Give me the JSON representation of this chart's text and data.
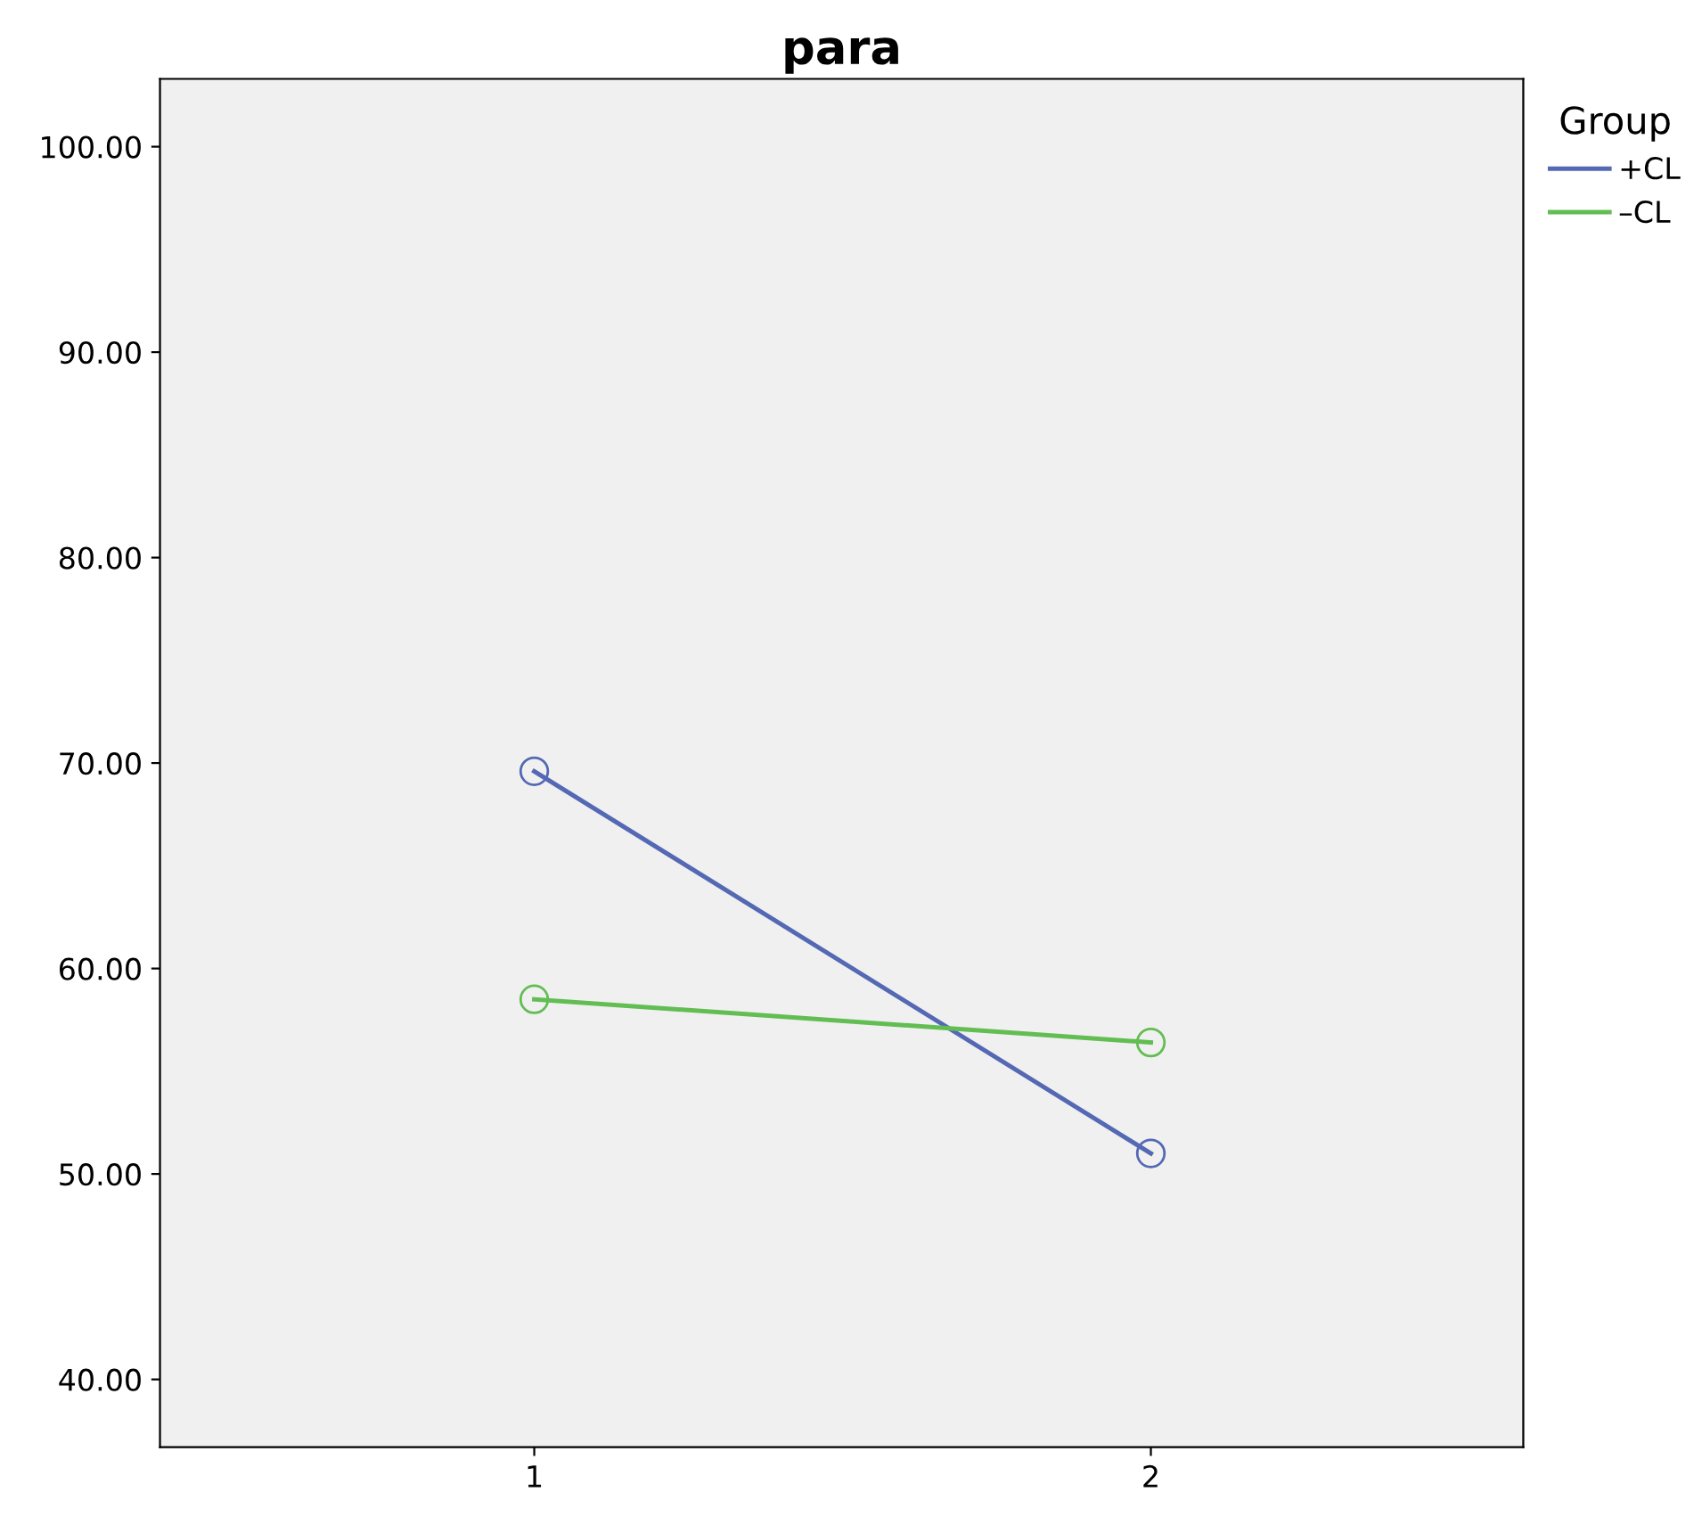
{
  "chart_data": {
    "type": "line",
    "title": "para",
    "legend_title": "Group",
    "categories": [
      "1",
      "2"
    ],
    "series": [
      {
        "name": "+CL",
        "color": "#5468b4",
        "values": [
          69.6,
          51.0
        ]
      },
      {
        "name": "–CL",
        "color": "#62bd52",
        "values": [
          58.5,
          56.4
        ]
      }
    ],
    "ylim": [
      36.7,
      103.3
    ],
    "yticks": [
      {
        "value": 40,
        "label": "40.00"
      },
      {
        "value": 50,
        "label": "50.00"
      },
      {
        "value": 60,
        "label": "60.00"
      },
      {
        "value": 70,
        "label": "70.00"
      },
      {
        "value": 80,
        "label": "80.00"
      },
      {
        "value": 90,
        "label": "90.00"
      },
      {
        "value": 100,
        "label": "100.00"
      }
    ],
    "marker": "circle",
    "line_style": "solid",
    "grid": false,
    "legend": "top right"
  }
}
